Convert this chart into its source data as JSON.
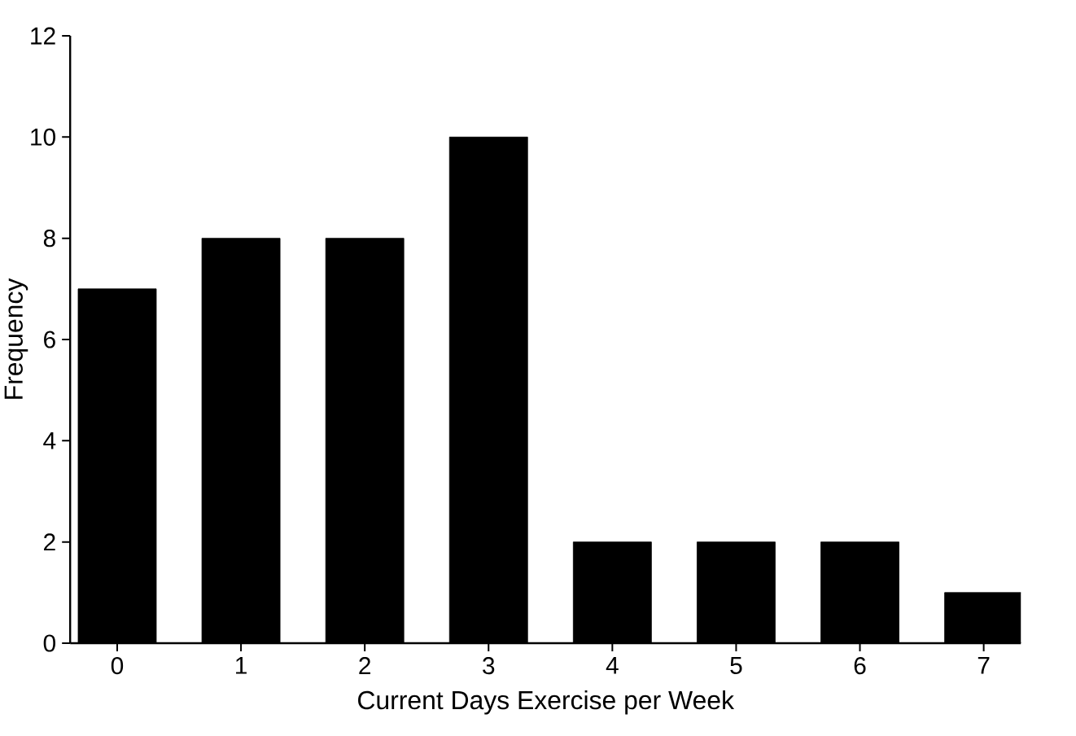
{
  "chart_data": {
    "type": "bar",
    "xlabel": "Current Days Exercise per Week",
    "ylabel": "Frequency",
    "categories": [
      "0",
      "1",
      "2",
      "3",
      "4",
      "5",
      "6",
      "7"
    ],
    "values": [
      7,
      8,
      8,
      10,
      2,
      2,
      2,
      1
    ],
    "color": "#000000",
    "ylim": [
      0,
      12
    ],
    "yticks": [
      0,
      2,
      4,
      6,
      8,
      10,
      12
    ],
    "grid": false
  }
}
